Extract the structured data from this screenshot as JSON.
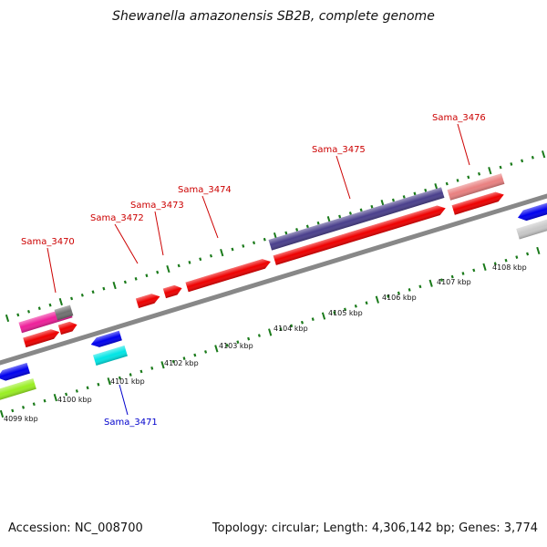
{
  "title": "Shewanella amazonensis SB2B, complete genome",
  "footer": {
    "accession": "Accession: NC_008700",
    "summary": "Topology: circular; Length: 4,306,142 bp; Genes: 3,774"
  },
  "scale_labels": [
    "4099 kbp",
    "4100 kbp",
    "4101 kbp",
    "4102 kbp",
    "4103 kbp",
    "4104 kbp",
    "4105 kbp",
    "4106 kbp",
    "4107 kbp",
    "4108 kbp"
  ],
  "gene_labels": [
    {
      "text": "Sama_3470",
      "color": "#cc0000"
    },
    {
      "text": "Sama_3471",
      "color": "#0000cc"
    },
    {
      "text": "Sama_3472",
      "color": "#cc0000"
    },
    {
      "text": "Sama_3473",
      "color": "#cc0000"
    },
    {
      "text": "Sama_3474",
      "color": "#cc0000"
    },
    {
      "text": "Sama_3475",
      "color": "#cc0000"
    },
    {
      "text": "Sama_3476",
      "color": "#cc0000"
    }
  ],
  "colors": {
    "backbone": "#888888",
    "tick": "#1a7a1a",
    "forward_cds": "#ee0000",
    "reverse_cds": "#0000ee",
    "purple_feature": "#4a3f8c",
    "pink_feature": "#ee1f9a",
    "salmon_feature": "#e98080",
    "cyan_feature": "#00e5e5",
    "lime_feature": "#99ee22",
    "gray_feature": "#707070",
    "lightgray_feature": "#c8c8c8"
  }
}
